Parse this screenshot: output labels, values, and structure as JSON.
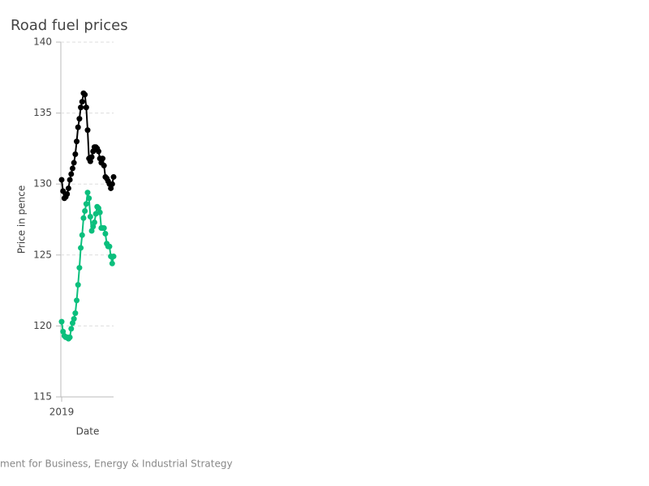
{
  "chart_data": {
    "type": "line",
    "title": "Road fuel prices",
    "xlabel": "Date",
    "ylabel": "Price in pence",
    "source": "ment for Business, Energy & Industrial Strategy",
    "categories": [
      "2019",
      null,
      null,
      null,
      null,
      null,
      null,
      null,
      null,
      null,
      null,
      null,
      null,
      null,
      null,
      null,
      null,
      null,
      null,
      null,
      null,
      null,
      null,
      null,
      null,
      null,
      null,
      null,
      null,
      null,
      null,
      null,
      null,
      null,
      null,
      null,
      null,
      null,
      null
    ],
    "series": [
      {
        "color": "#000000",
        "values": [
          130.3,
          129.5,
          129.0,
          129.1,
          129.3,
          129.7,
          130.3,
          130.7,
          131.1,
          131.5,
          132.1,
          133.0,
          134.0,
          134.6,
          135.4,
          135.8,
          136.4,
          136.3,
          135.4,
          133.8,
          131.8,
          131.6,
          131.9,
          132.3,
          132.6,
          132.6,
          132.5,
          132.3,
          131.8,
          131.5,
          131.8,
          131.3,
          130.5,
          130.4,
          130.2,
          130.0,
          129.7,
          130.0,
          130.5
        ]
      },
      {
        "color": "#0bbf7d",
        "values": [
          120.3,
          119.6,
          119.3,
          119.2,
          119.2,
          119.1,
          119.2,
          119.8,
          120.2,
          120.5,
          120.9,
          121.8,
          122.9,
          124.1,
          125.5,
          126.4,
          127.6,
          128.1,
          128.6,
          129.4,
          129.0,
          127.7,
          126.7,
          127.0,
          127.3,
          127.9,
          128.4,
          128.3,
          128.0,
          126.9,
          126.9,
          126.9,
          126.5,
          125.8,
          125.6,
          125.6,
          124.9,
          124.4,
          124.9
        ]
      }
    ],
    "ylim": [
      115,
      140
    ],
    "yticks": [
      115,
      120,
      125,
      130,
      135,
      140
    ],
    "grid": true
  }
}
